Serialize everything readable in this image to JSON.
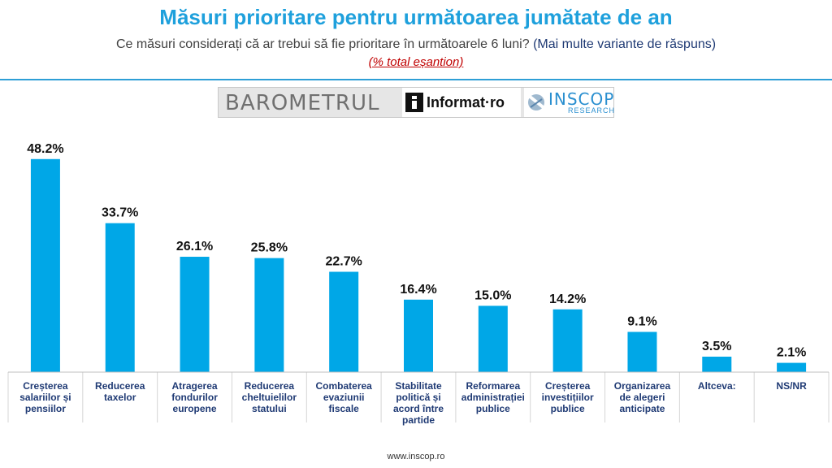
{
  "header": {
    "title": "Măsuri prioritare pentru următoarea jumătate de an",
    "subtitle_main": "Ce măsuri considerați că ar trebui să fie prioritare în următoarele 6 luni?",
    "subtitle_extra": "(Mai multe variante de răspuns)",
    "note": "(% total eșantion)"
  },
  "logos": {
    "barometrul": "BAROMETRUL",
    "informat": "Informat·ro",
    "inscop": "INSCOP",
    "inscop_sub": "RESEARCH"
  },
  "colors": {
    "bar": "#00a7e7",
    "title": "#1ea0dc",
    "accent_rule": "#2e9fd6"
  },
  "chart_data": {
    "type": "bar",
    "categories": [
      [
        "Creșterea",
        "salariilor și",
        "pensiilor"
      ],
      [
        "Reducerea",
        "taxelor"
      ],
      [
        "Atragerea",
        "fondurilor",
        "europene"
      ],
      [
        "Reducerea",
        "cheltuielilor",
        "statului"
      ],
      [
        "Combaterea",
        "evaziunii",
        "fiscale"
      ],
      [
        "Stabilitate",
        "politică și",
        "acord între",
        "partide"
      ],
      [
        "Reformarea",
        "administrației",
        "publice"
      ],
      [
        "Creșterea",
        "investițiilor",
        "publice"
      ],
      [
        "Organizarea",
        "de alegeri",
        "anticipate"
      ],
      [
        "Altceva:"
      ],
      [
        "NS/NR"
      ]
    ],
    "values": [
      48.2,
      33.7,
      26.1,
      25.8,
      22.7,
      16.4,
      15.0,
      14.2,
      9.1,
      3.5,
      2.1
    ],
    "value_labels": [
      "48.2%",
      "33.7%",
      "26.1%",
      "25.8%",
      "22.7%",
      "16.4%",
      "15.0%",
      "14.2%",
      "9.1%",
      "3.5%",
      "2.1%"
    ],
    "ylim": [
      0,
      50
    ],
    "grid": false,
    "legend": "none"
  },
  "footer": {
    "url": "www.inscop.ro"
  }
}
